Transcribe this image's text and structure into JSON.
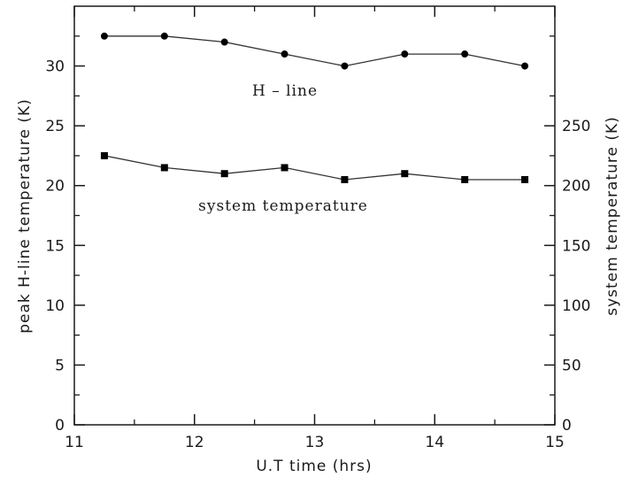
{
  "chart_data": {
    "type": "line",
    "x": [
      11.25,
      11.75,
      12.25,
      12.75,
      13.25,
      13.75,
      14.25,
      14.75
    ],
    "xlim": [
      11,
      15
    ],
    "ylim_left": [
      0,
      35
    ],
    "ylim_right": [
      0,
      350
    ],
    "x_ticks": [
      11,
      12,
      13,
      14,
      15
    ],
    "y_left_ticks": [
      0,
      5,
      10,
      15,
      20,
      25,
      30
    ],
    "y_right_ticks": [
      0,
      50,
      100,
      150,
      200,
      250
    ],
    "xlabel": "U.T time (hrs)",
    "ylabel_left": "peak H-line temperature (K)",
    "ylabel_right": "system temperature (K)",
    "series": [
      {
        "name": "H – line",
        "axis": "left",
        "marker": "circle",
        "values": [
          32.5,
          32.5,
          32,
          31,
          30,
          31,
          31,
          30
        ]
      },
      {
        "name": "system temperature",
        "axis": "right",
        "marker": "square",
        "values": [
          225,
          215,
          210,
          215,
          205,
          210,
          205,
          205
        ]
      }
    ],
    "grid": false,
    "legend": "none",
    "colors": {
      "line": "#333333",
      "marker": "#000000",
      "text": "#1a1a1a"
    }
  }
}
